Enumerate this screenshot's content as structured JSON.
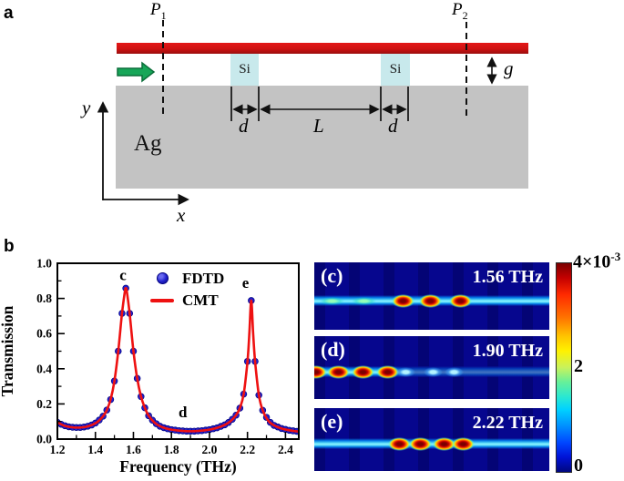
{
  "panel_a": {
    "tag": "a",
    "p1": {
      "base": "P",
      "sub": "1"
    },
    "p2": {
      "base": "P",
      "sub": "2"
    },
    "si_label": "Si",
    "ag_label": "Ag",
    "gap_label": "g",
    "d_label": "d",
    "length_label": "L",
    "x_label": "x",
    "y_label": "y",
    "colors": {
      "metal_bar": "#cf1212",
      "silver": "#c3c3c3",
      "silicon": "#c8e9ec",
      "input_arrow": "#17a658"
    }
  },
  "panel_b": {
    "tag": "b",
    "legend": [
      {
        "label": "FDTD",
        "marker": "dot",
        "color": "#2020cc"
      },
      {
        "label": "CMT",
        "marker": "line",
        "color": "#ee1111"
      }
    ]
  },
  "chart_data": {
    "type": "line",
    "xlabel": "Frequency (THz)",
    "ylabel": "Transmission",
    "xlim": [
      1.2,
      2.47
    ],
    "ylim": [
      0.0,
      1.0
    ],
    "xticks": [
      1.2,
      1.4,
      1.6,
      1.8,
      2.0,
      2.2,
      2.4
    ],
    "yticks": [
      0.0,
      0.2,
      0.4,
      0.6,
      0.8,
      1.0
    ],
    "xminor_step": 0.1,
    "yminor_step": 0.1,
    "grid": false,
    "legend_position": "upper center",
    "series": [
      {
        "name": "FDTD",
        "type": "scatter",
        "color": "#2020cc",
        "edge_color": "#000080",
        "sample_step": 0.02
      },
      {
        "name": "CMT",
        "type": "line",
        "color": "#ee1111"
      }
    ],
    "cmt_points": [
      [
        1.2,
        0.095
      ],
      [
        1.23,
        0.079
      ],
      [
        1.26,
        0.07
      ],
      [
        1.29,
        0.066
      ],
      [
        1.32,
        0.066
      ],
      [
        1.35,
        0.07
      ],
      [
        1.38,
        0.08
      ],
      [
        1.41,
        0.097
      ],
      [
        1.44,
        0.13
      ],
      [
        1.46,
        0.165
      ],
      [
        1.48,
        0.225
      ],
      [
        1.5,
        0.33
      ],
      [
        1.52,
        0.5
      ],
      [
        1.54,
        0.715
      ],
      [
        1.555,
        0.84
      ],
      [
        1.56,
        0.858
      ],
      [
        1.565,
        0.84
      ],
      [
        1.58,
        0.715
      ],
      [
        1.6,
        0.5
      ],
      [
        1.62,
        0.345
      ],
      [
        1.64,
        0.242
      ],
      [
        1.66,
        0.178
      ],
      [
        1.68,
        0.133
      ],
      [
        1.71,
        0.095
      ],
      [
        1.74,
        0.073
      ],
      [
        1.77,
        0.061
      ],
      [
        1.8,
        0.054
      ],
      [
        1.84,
        0.048
      ],
      [
        1.88,
        0.045
      ],
      [
        1.92,
        0.045
      ],
      [
        1.96,
        0.048
      ],
      [
        2.0,
        0.054
      ],
      [
        2.04,
        0.064
      ],
      [
        2.08,
        0.081
      ],
      [
        2.11,
        0.101
      ],
      [
        2.14,
        0.136
      ],
      [
        2.16,
        0.176
      ],
      [
        2.18,
        0.256
      ],
      [
        2.2,
        0.442
      ],
      [
        2.21,
        0.6
      ],
      [
        2.22,
        0.788
      ],
      [
        2.23,
        0.6
      ],
      [
        2.24,
        0.442
      ],
      [
        2.26,
        0.25
      ],
      [
        2.28,
        0.164
      ],
      [
        2.31,
        0.104
      ],
      [
        2.34,
        0.078
      ],
      [
        2.38,
        0.06
      ],
      [
        2.42,
        0.05
      ],
      [
        2.46,
        0.044
      ],
      [
        2.5,
        0.04
      ]
    ],
    "peaks": [
      {
        "label": "c",
        "frequency_THz": 1.56,
        "transmission": 0.88
      },
      {
        "label": "d",
        "frequency_THz": 1.9,
        "transmission": 0.05
      },
      {
        "label": "e",
        "frequency_THz": 2.22,
        "transmission": 0.8
      }
    ],
    "annotations": [
      {
        "text": "c",
        "f": 1.545,
        "t": 0.93
      },
      {
        "text": "d",
        "f": 1.86,
        "t": 0.15
      },
      {
        "text": "e",
        "f": 2.19,
        "t": 0.885
      }
    ]
  },
  "heatmaps": [
    {
      "tag": "(c)",
      "freq": "1.56 THz",
      "hot_blobs": [
        0.376,
        0.492,
        0.62
      ],
      "faint_blobs": [],
      "soft_blobs": [
        0.07,
        0.205
      ],
      "stripe_dim_right": false
    },
    {
      "tag": "(d)",
      "freq": "1.90 THz",
      "hot_blobs": [
        0.004,
        0.1,
        0.205,
        0.31
      ],
      "faint_blobs": [
        0.395,
        0.512,
        0.6
      ],
      "soft_blobs": [],
      "stripe_dim_right": true
    },
    {
      "tag": "(e)",
      "freq": "2.22 THz",
      "hot_blobs": [
        0.36,
        0.45,
        0.55,
        0.632
      ],
      "faint_blobs": [],
      "soft_blobs": [],
      "stripe_dim_right": false
    }
  ],
  "colorbar": {
    "max_coeff": "4×10",
    "max_exp": "-3",
    "mid_label": "2",
    "min_label": "0",
    "scale": "jet"
  }
}
